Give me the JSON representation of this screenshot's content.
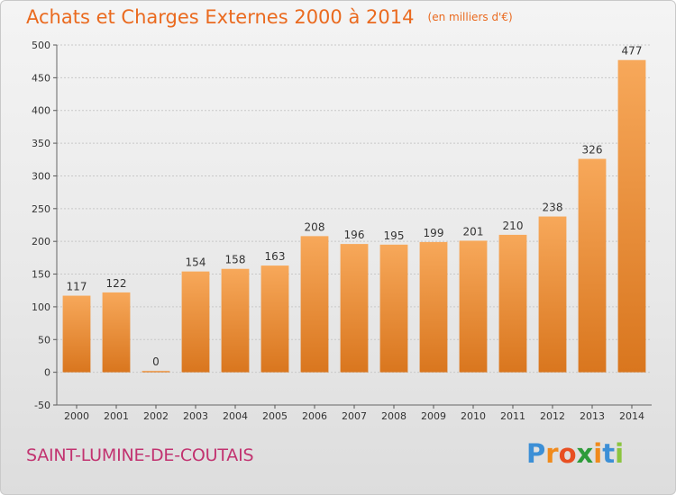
{
  "commune": "SAINT-LUMINE-DE-COUTAIS",
  "logo": {
    "letters": [
      "P",
      "r",
      "o",
      "x",
      "i",
      "t",
      "i"
    ],
    "colors": [
      "#3c8fd6",
      "#f08a1c",
      "#e84f22",
      "#2d9b3a",
      "#f08a1c",
      "#3c8fd6",
      "#8bc43f"
    ]
  },
  "colors": {
    "bar_light": "#f7a85a",
    "bar_dark": "#d9761e",
    "title": "#ea6a1f",
    "commune": "#c23370"
  },
  "chart_data": {
    "type": "bar",
    "title": "Achats et Charges Externes 2000 à 2014",
    "unit_label": "(en milliers d'€)",
    "categories": [
      "2000",
      "2001",
      "2002",
      "2003",
      "2004",
      "2005",
      "2006",
      "2007",
      "2008",
      "2009",
      "2010",
      "2011",
      "2012",
      "2013",
      "2014"
    ],
    "values": [
      117,
      122,
      0,
      154,
      158,
      163,
      208,
      196,
      195,
      199,
      201,
      210,
      238,
      326,
      477
    ],
    "ylim": [
      -50,
      500
    ],
    "yticks": [
      -50,
      0,
      50,
      100,
      150,
      200,
      250,
      300,
      350,
      400,
      450,
      500
    ],
    "grid": true
  }
}
